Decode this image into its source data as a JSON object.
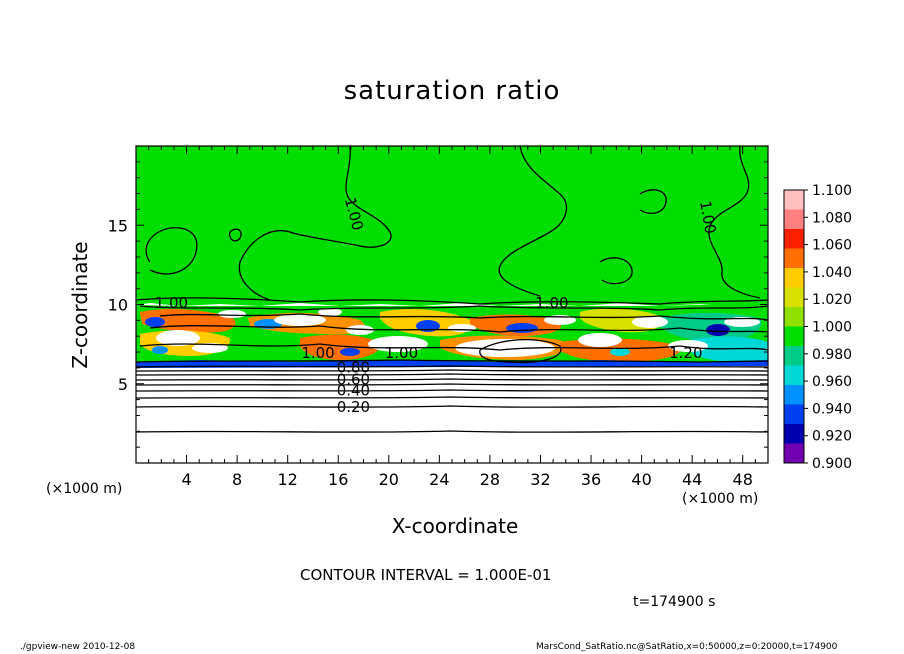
{
  "chart_data": {
    "type": "heatmap",
    "title": "saturation ratio",
    "xlabel": "X-coordinate",
    "ylabel": "Z-coordinate",
    "x_unit_left": "(×1000 m)",
    "x_unit_right": "(×1000 m)",
    "xlim": [
      0,
      50
    ],
    "ylim": [
      0,
      20
    ],
    "x_ticks": [
      "4",
      "8",
      "12",
      "16",
      "20",
      "24",
      "28",
      "32",
      "36",
      "40",
      "44",
      "48"
    ],
    "x_tick_values": [
      4,
      8,
      12,
      16,
      20,
      24,
      28,
      32,
      36,
      40,
      44,
      48
    ],
    "y_ticks": [
      "5",
      "10",
      "15"
    ],
    "y_tick_values": [
      5,
      10,
      15
    ],
    "colorbar": {
      "labels": [
        "1.100",
        "1.080",
        "1.060",
        "1.040",
        "1.020",
        "1.000",
        "0.980",
        "0.960",
        "0.940",
        "0.920",
        "0.900"
      ],
      "colors": [
        "#ffc0c0",
        "#ff8080",
        "#ff2000",
        "#ff7000",
        "#ffcc00",
        "#d8e000",
        "#90e000",
        "#00dd00",
        "#00cc88",
        "#00d8d8",
        "#0090ff",
        "#0040f0",
        "#0000b0",
        "#7000b0"
      ]
    },
    "contour_labels": [
      {
        "text": "1.00",
        "x": 17.2,
        "z": 15.7,
        "angle": 75
      },
      {
        "text": "1.00",
        "x": 45.2,
        "z": 15.5,
        "angle": 80
      },
      {
        "text": "1.00",
        "x": 2.8,
        "z": 10.05,
        "angle": 0
      },
      {
        "text": "1.00",
        "x": 32.9,
        "z": 10.05,
        "angle": 0
      },
      {
        "text": "1.00",
        "x": 14.4,
        "z": 6.9,
        "angle": 0
      },
      {
        "text": "1.00",
        "x": 21.0,
        "z": 6.9,
        "angle": 0
      },
      {
        "text": "1.20",
        "x": 43.5,
        "z": 6.9,
        "angle": 0
      },
      {
        "text": "0.80",
        "x": 17.2,
        "z": 6.0,
        "angle": 0
      },
      {
        "text": "0.60",
        "x": 17.2,
        "z": 5.25,
        "angle": 0
      },
      {
        "text": "0.40",
        "x": 17.2,
        "z": 4.55,
        "angle": 0
      },
      {
        "text": "0.20",
        "x": 17.2,
        "z": 3.5,
        "angle": 0
      }
    ],
    "contour_interval": "CONTOUR INTERVAL = 1.000E-01",
    "grid": false
  },
  "time_label": "t=174900 s",
  "footer": {
    "left": "./gpview-new   2010-12-08",
    "right": "MarsCond_SatRatio.nc@SatRatio,x=0:50000,z=0:20000,t=174900"
  }
}
